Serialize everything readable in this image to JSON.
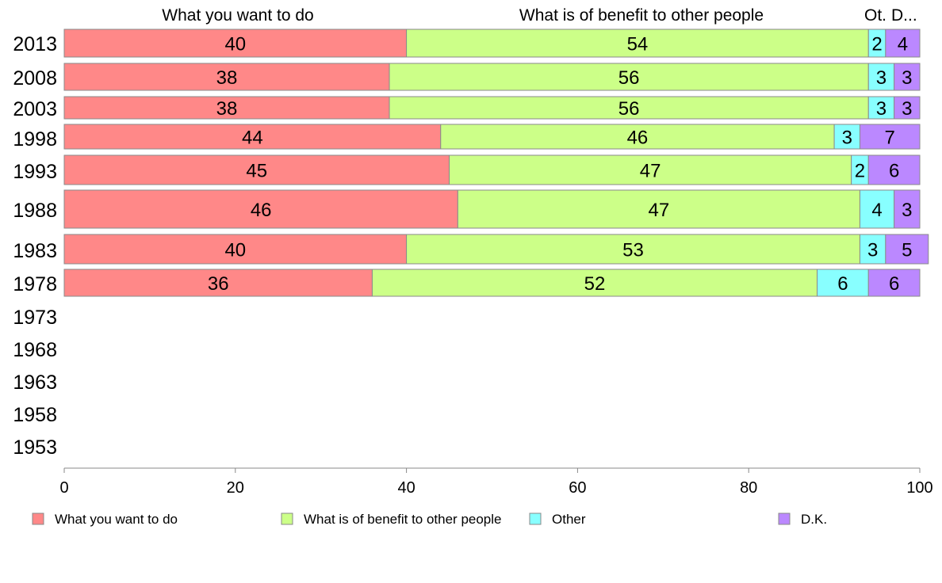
{
  "chart_data": {
    "type": "bar",
    "orientation": "horizontal",
    "stacked": true,
    "categories": [
      "2013",
      "2008",
      "2003",
      "1998",
      "1993",
      "1988",
      "1983",
      "1978",
      "1973",
      "1968",
      "1963",
      "1958",
      "1953"
    ],
    "series": [
      {
        "name": "What you want to do",
        "color": "#ff8888",
        "values": [
          40,
          38,
          38,
          44,
          45,
          46,
          40,
          36,
          null,
          null,
          null,
          null,
          null
        ]
      },
      {
        "name": "What is of benefit to other people",
        "color": "#ccff88",
        "values": [
          54,
          56,
          56,
          46,
          47,
          47,
          53,
          52,
          null,
          null,
          null,
          null,
          null
        ]
      },
      {
        "name": "Other",
        "color": "#88ffff",
        "values": [
          2,
          3,
          3,
          3,
          2,
          4,
          3,
          6,
          null,
          null,
          null,
          null,
          null
        ]
      },
      {
        "name": "D.K.",
        "color": "#bb88ff",
        "values": [
          4,
          3,
          3,
          7,
          6,
          3,
          5,
          6,
          null,
          null,
          null,
          null,
          null
        ]
      }
    ],
    "top_labels": [
      "What you want to do",
      "What is of benefit to other people",
      "Ot.",
      "D..."
    ],
    "xlim": [
      0,
      100
    ],
    "xticks": [
      "0",
      "20",
      "40",
      "60",
      "80",
      "100"
    ],
    "grid": false,
    "legend_position": "bottom"
  }
}
